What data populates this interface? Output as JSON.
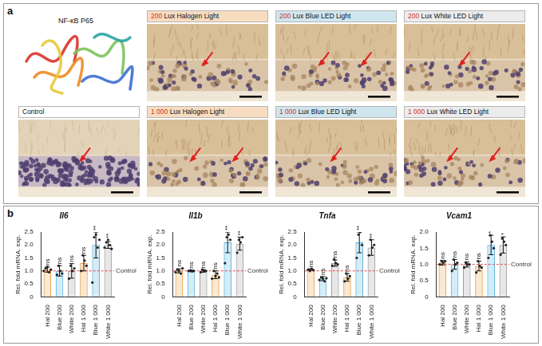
{
  "panel_a": {
    "letter": "a",
    "structure": {
      "label": "NF-κB P65"
    },
    "rows": [
      [
        {
          "label": "200 Lux Halogen Light",
          "color": "#f8dcc0"
        },
        {
          "label": "200 Lux Blue LED Light",
          "color": "#cfe6ef"
        },
        {
          "label": "200 Lux White LED Light",
          "color": "#ececec"
        }
      ],
      [
        {
          "label": "Control",
          "color": "#ffffff"
        },
        {
          "label": "1 000 Lux Halogen Light",
          "color": "#f8dcc0"
        },
        {
          "label": "1 000 Lux Blue LED Light",
          "color": "#cfe6ef"
        },
        {
          "label": "1 000 Lux White LED Light",
          "color": "#ececec"
        }
      ]
    ]
  },
  "panel_b": {
    "letter": "b"
  },
  "chart_data": [
    {
      "type": "bar",
      "title": "Il6",
      "ylabel": "Rel. fold mRNA. exp.",
      "categories": [
        "Hal 200",
        "Blue 200",
        "White 200",
        "Hal 1 000",
        "Blue 1 000",
        "White 1 000"
      ],
      "values": [
        1.05,
        1.0,
        1.0,
        1.3,
        2.0,
        2.0
      ],
      "errors": [
        0.1,
        0.2,
        0.28,
        0.3,
        0.5,
        0.13
      ],
      "points": [
        [
          1.0,
          1.1,
          1.15,
          0.95,
          1.05
        ],
        [
          0.85,
          1.2,
          1.0,
          0.9
        ],
        [
          0.7,
          1.2,
          1.0,
          1.1
        ],
        [
          1.0,
          1.6,
          1.4,
          1.2
        ],
        [
          0.55,
          2.3,
          2.4,
          1.9,
          2.2
        ],
        [
          1.9,
          2.1,
          2.2,
          2.0,
          1.85
        ]
      ],
      "significance": [
        "ns",
        "ns",
        "ns",
        "ns",
        "**",
        "**"
      ],
      "colors": [
        "#e9a24c",
        "#59b4dc",
        "#9e9e9e",
        "#e9a24c",
        "#59b4dc",
        "#9e9e9e"
      ],
      "ylim": [
        0,
        2.5
      ],
      "yticks": [
        0,
        0.5,
        {
          "value": 1,
          "label": "1.0"
        },
        1.5,
        {
          "value": 2,
          "label": "2.0"
        },
        2.5
      ],
      "annotations": [
        {
          "y": 1,
          "text": "Control",
          "color": "#e8474a"
        }
      ],
      "grid": false
    },
    {
      "type": "bar",
      "title": "Il1b",
      "ylabel": "Rel. fold mRNA. exp.",
      "categories": [
        "Hal 200",
        "Blue 200",
        "White 200",
        "Hal 1 000",
        "Blue 1 000",
        "White 1 000"
      ],
      "values": [
        1.0,
        1.0,
        1.0,
        0.85,
        2.1,
        2.05
      ],
      "errors": [
        0.08,
        0.03,
        0.05,
        0.15,
        0.4,
        0.25
      ],
      "points": [
        [
          0.95,
          1.05,
          1.0,
          0.9,
          1.1
        ],
        [
          1.0,
          1.02,
          0.98,
          1.0
        ],
        [
          0.95,
          1.05,
          1.0,
          1.0
        ],
        [
          0.7,
          1.0,
          0.8,
          0.9,
          0.75
        ],
        [
          1.3,
          2.3,
          2.4,
          2.2
        ],
        [
          1.7,
          2.2,
          2.1,
          2.3
        ]
      ],
      "significance": [
        "ns",
        "ns",
        "ns",
        "ns",
        "**",
        "**"
      ],
      "colors": [
        "#e9a24c",
        "#59b4dc",
        "#9e9e9e",
        "#e9a24c",
        "#59b4dc",
        "#9e9e9e"
      ],
      "ylim": [
        0,
        2.5
      ],
      "yticks": [
        0,
        0.5,
        {
          "value": 1,
          "label": "1.0"
        },
        1.5,
        {
          "value": 2,
          "label": "2.0"
        },
        2.5
      ],
      "annotations": [
        {
          "y": 1,
          "text": "Control",
          "color": "#e8474a"
        }
      ],
      "grid": false
    },
    {
      "type": "bar",
      "title": "Tnfa",
      "ylabel": "Rel. fold mRNA. exp.",
      "categories": [
        "Hal 200",
        "Blue 200",
        "White 200",
        "Hal 1 000",
        "Blue 1 000",
        "White 1 000"
      ],
      "values": [
        1.05,
        0.7,
        1.3,
        0.75,
        2.1,
        1.9
      ],
      "errors": [
        0.03,
        0.08,
        0.12,
        0.15,
        0.4,
        0.3
      ],
      "points": [
        [
          1.05,
          1.0,
          1.08,
          1.03
        ],
        [
          0.65,
          0.75,
          0.7,
          0.6,
          0.72
        ],
        [
          1.2,
          1.45,
          1.3,
          1.25
        ],
        [
          0.6,
          0.9,
          0.7,
          0.8
        ],
        [
          1.5,
          2.4,
          2.5,
          2.0
        ],
        [
          1.6,
          2.2,
          1.9,
          2.0
        ]
      ],
      "significance": [
        "ns",
        "ns",
        "ns",
        "ns",
        "**",
        "**"
      ],
      "colors": [
        "#e9a24c",
        "#59b4dc",
        "#9e9e9e",
        "#e9a24c",
        "#59b4dc",
        "#9e9e9e"
      ],
      "ylim": [
        0,
        2.5
      ],
      "yticks": [
        0,
        0.5,
        {
          "value": 1,
          "label": "1.0"
        },
        1.5,
        {
          "value": 2,
          "label": "2.0"
        },
        2.5
      ],
      "annotations": [
        {
          "y": 1,
          "text": "Control",
          "color": "#e8474a"
        }
      ],
      "grid": false
    },
    {
      "type": "bar",
      "title": "Vcam1",
      "ylabel": "Rel. fold mRNA. exp.",
      "categories": [
        "Hal 200",
        "Blue 200",
        "White 200",
        "Hal 1 000",
        "Blue 1 000",
        "White 1 000"
      ],
      "values": [
        1.05,
        1.0,
        1.0,
        0.95,
        1.6,
        1.6
      ],
      "errors": [
        0.07,
        0.15,
        0.08,
        0.15,
        0.3,
        0.25
      ],
      "points": [
        [
          1.0,
          1.1,
          1.05,
          1.1
        ],
        [
          0.8,
          1.15,
          1.0,
          1.05
        ],
        [
          0.9,
          1.05,
          1.0,
          1.0
        ],
        [
          0.75,
          1.1,
          0.95,
          0.9
        ],
        [
          1.2,
          1.9,
          1.7,
          1.5
        ],
        [
          1.3,
          1.8,
          1.7,
          1.6
        ]
      ],
      "significance": [
        "ns",
        "ns",
        "ns",
        "ns",
        "*",
        "*"
      ],
      "colors": [
        "#e9a24c",
        "#59b4dc",
        "#9e9e9e",
        "#e9a24c",
        "#59b4dc",
        "#9e9e9e"
      ],
      "ylim": [
        0,
        2
      ],
      "yticks": [
        0,
        0.5,
        {
          "value": 1,
          "label": "1.0"
        },
        1.5,
        {
          "value": 2,
          "label": "2.0"
        }
      ],
      "annotations": [
        {
          "y": 1,
          "text": "Control",
          "color": "#e8474a"
        }
      ],
      "grid": false
    }
  ]
}
